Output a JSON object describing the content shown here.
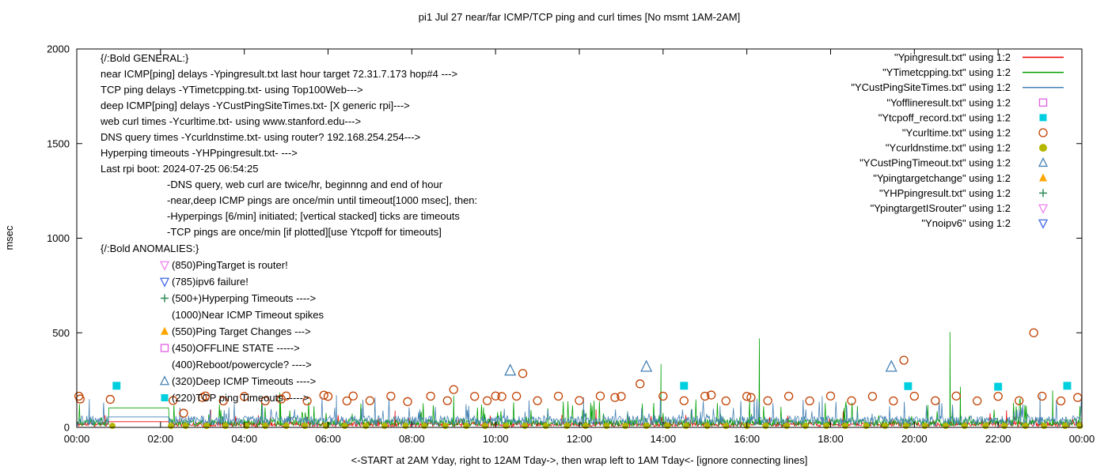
{
  "chart_data": {
    "type": "line",
    "title": "pi1 Jul 27  near/far ICMP/TCP ping and curl times [No msmt 1AM-2AM]",
    "xlabel": "<-START at 2AM Yday, right to 12AM Tday->, then wrap left to 1AM Tday<- [ignore connecting lines]",
    "ylabel": "msec",
    "ylim": [
      0,
      2000
    ],
    "y_ticks": [
      0,
      500,
      1000,
      1500,
      2000
    ],
    "x_hours": [
      0,
      24
    ],
    "x_tick_step_hours": 2,
    "x_tick_labels": [
      "00:00",
      "02:00",
      "04:00",
      "06:00",
      "08:00",
      "10:00",
      "12:00",
      "14:00",
      "16:00",
      "18:00",
      "20:00",
      "22:00",
      "00:00"
    ],
    "grid": false,
    "legend_position": "top-right-inside",
    "no_msmt_gap_hours": [
      0.78,
      2.18
    ],
    "legend": [
      {
        "label": "\"Ypingresult.txt\" using 1:2",
        "type": "line",
        "color": "#ee0000"
      },
      {
        "label": "\"YTimetcpping.txt\" using 1:2",
        "type": "line",
        "color": "#00a000"
      },
      {
        "label": "\"YCustPingSiteTimes.txt\" using 1:2",
        "type": "line",
        "color": "#4682b4"
      },
      {
        "label": "\"Yofflineresult.txt\" using 1:2",
        "type": "square-open",
        "color": "#e060e0"
      },
      {
        "label": "\"Ytcpoff_record.txt\" using 1:2",
        "type": "square-filled",
        "color": "#00cfe0"
      },
      {
        "label": "\"Ycurltime.txt\" using 1:2",
        "type": "circle-open",
        "color": "#c04000"
      },
      {
        "label": "\"Ycurldnstime.txt\" using 1:2",
        "type": "circle-filled",
        "color": "#b5b700"
      },
      {
        "label": "\"YCustPingTimeout.txt\" using 1:2",
        "type": "triangle-open",
        "color": "#4682b4"
      },
      {
        "label": "\"Ypingtargetchange\" using 1:2",
        "type": "triangle-filled",
        "color": "#ffa500"
      },
      {
        "label": "\"YHPpingresult.txt\" using 1:2",
        "type": "plus",
        "color": "#2e8b57"
      },
      {
        "label": "\"YpingtargetISrouter\" using 1:2",
        "type": "nabla-open",
        "color": "#ee82ee"
      },
      {
        "label": "\"Ynoipv6\" using 1:2",
        "type": "nabla-open",
        "color": "#4169e1"
      }
    ],
    "lines": [
      {
        "name": "Ypingresult.txt",
        "color": "#ee0000",
        "seed": 11,
        "min": 4,
        "range": 24,
        "spike_prob": 0.04,
        "spike_amp": 55,
        "gap_level": 30,
        "spikes": [
          [
            3.2,
            92
          ],
          [
            7.6,
            88
          ],
          [
            12.4,
            95
          ],
          [
            18.3,
            85
          ],
          [
            22.2,
            90
          ]
        ]
      },
      {
        "name": "YTimetcpping.txt",
        "color": "#00a000",
        "seed": 23,
        "min": 6,
        "range": 38,
        "spike_prob": 0.06,
        "spike_amp": 120,
        "gap_level": 103,
        "spikes": [
          [
            4.85,
            185
          ],
          [
            9.0,
            168
          ],
          [
            13.95,
            335
          ],
          [
            16.3,
            470
          ],
          [
            20.85,
            505
          ],
          [
            21.1,
            215
          ],
          [
            23.3,
            195
          ]
        ]
      },
      {
        "name": "YCustPingSiteTimes.txt",
        "color": "#4682b4",
        "seed": 37,
        "min": 10,
        "range": 52,
        "spike_prob": 0.07,
        "spike_amp": 110,
        "gap_level": 55,
        "spikes": [
          [
            0.3,
            150
          ],
          [
            6.2,
            170
          ],
          [
            12.1,
            160
          ],
          [
            17.8,
            165
          ],
          [
            23.0,
            175
          ]
        ]
      }
    ],
    "points": [
      {
        "name": "Yofflineresult.txt",
        "marker": "square-open",
        "color": "#e060e0",
        "size": 5.5,
        "data": []
      },
      {
        "name": "Ytcpoff_record.txt",
        "marker": "square-filled",
        "color": "#00cfe0",
        "size": 5.5,
        "data": [
          [
            0.95,
            220
          ],
          [
            14.5,
            220
          ],
          [
            19.85,
            218
          ],
          [
            22.0,
            215
          ],
          [
            23.65,
            220
          ]
        ]
      },
      {
        "name": "Ycurltime.txt",
        "marker": "circle-open",
        "color": "#c04000",
        "size": 5,
        "data": [
          [
            0.05,
            165
          ],
          [
            0.08,
            150
          ],
          [
            0.8,
            148
          ],
          [
            2.3,
            142
          ],
          [
            2.55,
            75
          ],
          [
            3.0,
            158
          ],
          [
            3.07,
            166
          ],
          [
            3.5,
            140
          ],
          [
            4.0,
            163
          ],
          [
            4.5,
            140
          ],
          [
            4.88,
            150
          ],
          [
            5.0,
            166
          ],
          [
            5.5,
            140
          ],
          [
            5.9,
            170
          ],
          [
            6.0,
            164
          ],
          [
            6.45,
            140
          ],
          [
            6.6,
            166
          ],
          [
            7.0,
            141
          ],
          [
            7.5,
            165
          ],
          [
            7.9,
            136
          ],
          [
            8.45,
            165
          ],
          [
            8.85,
            141
          ],
          [
            9.0,
            200
          ],
          [
            9.5,
            164
          ],
          [
            9.8,
            141
          ],
          [
            10.0,
            166
          ],
          [
            10.15,
            163
          ],
          [
            10.5,
            165
          ],
          [
            10.65,
            285
          ],
          [
            11.0,
            141
          ],
          [
            11.5,
            165
          ],
          [
            12.0,
            142
          ],
          [
            12.5,
            166
          ],
          [
            12.85,
            158
          ],
          [
            13.0,
            164
          ],
          [
            13.45,
            230
          ],
          [
            14.0,
            165
          ],
          [
            14.5,
            141
          ],
          [
            15.0,
            165
          ],
          [
            15.15,
            171
          ],
          [
            15.5,
            140
          ],
          [
            16.0,
            164
          ],
          [
            16.1,
            158
          ],
          [
            16.5,
            141
          ],
          [
            17.0,
            165
          ],
          [
            17.5,
            140
          ],
          [
            18.0,
            166
          ],
          [
            18.5,
            141
          ],
          [
            19.0,
            164
          ],
          [
            19.5,
            140
          ],
          [
            19.75,
            355
          ],
          [
            20.0,
            165
          ],
          [
            20.5,
            141
          ],
          [
            21.0,
            166
          ],
          [
            21.5,
            140
          ],
          [
            22.0,
            164
          ],
          [
            22.5,
            141
          ],
          [
            22.85,
            500
          ],
          [
            23.05,
            165
          ],
          [
            23.5,
            140
          ],
          [
            23.9,
            158
          ]
        ]
      },
      {
        "name": "Ycurldnstime.txt",
        "marker": "circle-filled",
        "color": "#b5b700",
        "size": 4,
        "value": 8,
        "hours": [
          0.85,
          2.25,
          2.6,
          3.1,
          3.55,
          4.05,
          4.5,
          5.0,
          5.45,
          5.95,
          6.4,
          6.9,
          7.35,
          7.85,
          8.3,
          8.8,
          9.3,
          9.75,
          10.25,
          10.7,
          11.2,
          11.7,
          12.15,
          12.65,
          13.1,
          13.6,
          14.1,
          14.55,
          15.05,
          15.5,
          16.0,
          16.45,
          16.95,
          17.4,
          17.9,
          18.35,
          18.85,
          19.3,
          19.8,
          20.25,
          20.75,
          21.2,
          21.7,
          22.15,
          22.65,
          23.1,
          23.6,
          23.95
        ]
      },
      {
        "name": "YCustPingTimeout.txt",
        "marker": "triangle-open",
        "color": "#4682b4",
        "size": 6.5,
        "data": [
          [
            10.35,
            300
          ],
          [
            13.6,
            320
          ],
          [
            19.45,
            320
          ]
        ]
      },
      {
        "name": "Ypingtargetchange",
        "marker": "triangle-filled",
        "color": "#ffa500",
        "size": 6.5,
        "data": []
      },
      {
        "name": "YHPpingresult.txt",
        "marker": "plus",
        "color": "#2e8b57",
        "size": 5.5,
        "data": []
      },
      {
        "name": "YpingtargetISrouter",
        "marker": "nabla-open",
        "color": "#ee82ee",
        "size": 6,
        "data": []
      },
      {
        "name": "Ynoipv6",
        "marker": "nabla-open",
        "color": "#4169e1",
        "size": 6,
        "data": []
      }
    ],
    "annotations": {
      "general": {
        "header": "{/:Bold GENERAL:}",
        "lines": [
          {
            "text": "near ICMP[ping] delays -Ypingresult.txt last hour target 72.31.7.173 hop#4 --->",
            "indent": 0
          },
          {
            "text": "TCP ping delays -YTimetcpping.txt- using Top100Web--->",
            "indent": 0
          },
          {
            "text": "deep ICMP[ping] delays -YCustPingSiteTimes.txt- [X generic rpi]--->",
            "indent": 0
          },
          {
            "text": "web curl times -Ycurltime.txt- using www.stanford.edu--->",
            "indent": 0
          },
          {
            "text": "DNS query times -Ycurldnstime.txt- using router? 192.168.254.254--->",
            "indent": 0
          },
          {
            "text": "Hyperping timeouts -YHPpingresult.txt- --->",
            "indent": 0
          },
          {
            "text": "Last rpi boot: 2024-07-25 06:54:25",
            "indent": 0
          },
          {
            "text": "-DNS query, web curl are twice/hr, beginnng and end of hour",
            "indent": 1
          },
          {
            "text": "-near,deep ICMP pings are once/min until timeout[1000 msec], then:",
            "indent": 1
          },
          {
            "text": "-Hyperpings [6/min] initiated; [vertical stacked] ticks are timeouts",
            "indent": 1
          },
          {
            "text": "-TCP pings are once/min [if plotted][use Ytcpoff for timeouts]",
            "indent": 1
          }
        ]
      },
      "anomalies": {
        "header": "{/:Bold ANOMALIES:}",
        "items": [
          {
            "marker": "nabla-open",
            "color": "#ee82ee",
            "text": "(850)PingTarget is router!"
          },
          {
            "marker": "nabla-open",
            "color": "#4169e1",
            "text": "(785)ipv6 failure!"
          },
          {
            "marker": "plus",
            "color": "#2e8b57",
            "text": "(500+)Hyperping Timeouts ---->"
          },
          {
            "marker": null,
            "color": null,
            "text": "(1000)Near ICMP Timeout spikes"
          },
          {
            "marker": "triangle-filled",
            "color": "#ffa500",
            "text": "(550)Ping Target Changes --->"
          },
          {
            "marker": "square-open",
            "color": "#e060e0",
            "text": "(450)OFFLINE STATE ----->"
          },
          {
            "marker": null,
            "color": null,
            "text": "(400)Reboot/powercycle? ---->"
          },
          {
            "marker": "triangle-open",
            "color": "#4682b4",
            "text": "(320)Deep ICMP Timeouts ---->"
          },
          {
            "marker": "square-filled",
            "color": "#00cfe0",
            "text": "(220)TCP ping Timeouts ----->"
          }
        ]
      }
    }
  }
}
